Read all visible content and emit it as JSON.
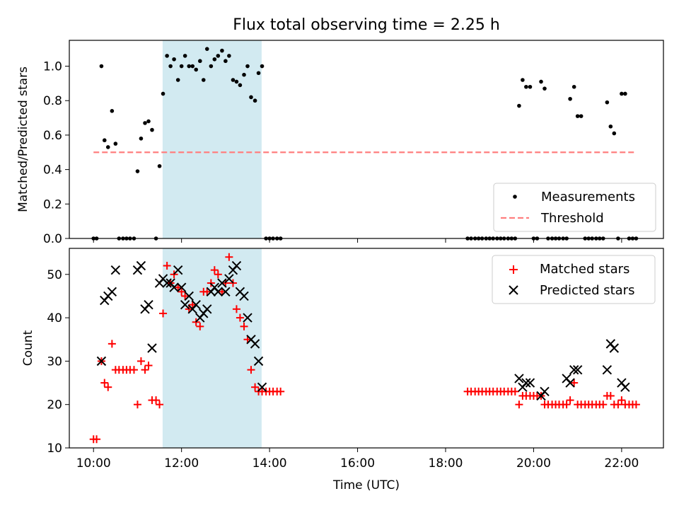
{
  "chart_data": [
    {
      "type": "scatter",
      "title": "Flux total observing time = 2.25 h",
      "xlabel": "",
      "ylabel": "Matched/Predicted stars",
      "xlim": [
        9.45,
        22.95
      ],
      "ylim": [
        0,
        1.15
      ],
      "yticks": [
        0.0,
        0.2,
        0.4,
        0.6,
        0.8,
        1.0
      ],
      "ytick_labels": [
        "0.0",
        "0.2",
        "0.4",
        "0.6",
        "0.8",
        "1.0"
      ],
      "shaded_span": {
        "x": [
          11.57,
          13.82
        ],
        "color": "#add8e6"
      },
      "legend_position": "lower-right",
      "series": [
        {
          "name": "Measurements",
          "marker": "dot",
          "color": "#000000",
          "x": [
            10.0,
            10.07,
            10.18,
            10.25,
            10.33,
            10.42,
            10.5,
            10.58,
            10.67,
            10.75,
            10.83,
            10.92,
            11.0,
            11.08,
            11.17,
            11.25,
            11.33,
            11.42,
            11.5,
            11.58,
            11.67,
            11.75,
            11.83,
            11.92,
            12.0,
            12.08,
            12.17,
            12.25,
            12.33,
            12.42,
            12.5,
            12.58,
            12.67,
            12.75,
            12.83,
            12.92,
            13.0,
            13.08,
            13.17,
            13.25,
            13.33,
            13.42,
            13.5,
            13.58,
            13.67,
            13.75,
            13.83,
            13.92,
            14.0,
            14.08,
            14.17,
            14.25,
            18.5,
            18.58,
            18.67,
            18.75,
            18.83,
            18.92,
            19.0,
            19.08,
            19.17,
            19.25,
            19.33,
            19.42,
            19.5,
            19.58,
            19.67,
            19.75,
            19.83,
            19.92,
            20.0,
            20.08,
            20.17,
            20.25,
            20.33,
            20.42,
            20.5,
            20.58,
            20.67,
            20.75,
            20.83,
            20.92,
            21.0,
            21.08,
            21.17,
            21.25,
            21.33,
            21.42,
            21.5,
            21.58,
            21.67,
            21.75,
            21.83,
            21.92,
            22.0,
            22.08,
            22.17,
            22.25,
            22.33
          ],
          "y": [
            0.0,
            0.0,
            1.0,
            0.57,
            0.53,
            0.74,
            0.55,
            0.0,
            0.0,
            0.0,
            0.0,
            0.0,
            0.39,
            0.58,
            0.67,
            0.68,
            0.63,
            0.0,
            0.42,
            0.84,
            1.06,
            1.0,
            1.04,
            0.92,
            1.0,
            1.06,
            1.0,
            1.0,
            0.98,
            1.03,
            0.92,
            1.1,
            1.0,
            1.04,
            1.06,
            1.09,
            1.03,
            1.06,
            0.92,
            0.91,
            0.89,
            0.95,
            1.0,
            0.82,
            0.8,
            0.96,
            1.0,
            0.0,
            0.0,
            0.0,
            0.0,
            0.0,
            0.0,
            0.0,
            0.0,
            0.0,
            0.0,
            0.0,
            0.0,
            0.0,
            0.0,
            0.0,
            0.0,
            0.0,
            0.0,
            0.0,
            0.77,
            0.92,
            0.88,
            0.88,
            0.0,
            0.0,
            0.91,
            0.87,
            0.0,
            0.0,
            0.0,
            0.0,
            0.0,
            0.0,
            0.81,
            0.88,
            0.71,
            0.71,
            0.0,
            0.0,
            0.0,
            0.0,
            0.0,
            0.0,
            0.79,
            0.65,
            0.61,
            0.0,
            0.84,
            0.84,
            0.0,
            0.0,
            0.0
          ]
        },
        {
          "name": "Threshold",
          "marker": "dashed-line",
          "color": "#ff7f7f",
          "x": [
            10.0,
            22.3
          ],
          "y": [
            0.5,
            0.5
          ]
        }
      ]
    },
    {
      "type": "scatter",
      "title": "",
      "xlabel": "Time (UTC)",
      "ylabel": "Count",
      "xlim": [
        9.45,
        22.95
      ],
      "ylim": [
        10,
        56
      ],
      "yticks": [
        10,
        20,
        30,
        40,
        50
      ],
      "ytick_labels": [
        "10",
        "20",
        "30",
        "40",
        "50"
      ],
      "xticks": [
        10,
        12,
        14,
        16,
        18,
        20,
        22
      ],
      "xtick_labels": [
        "10:00",
        "12:00",
        "14:00",
        "16:00",
        "18:00",
        "20:00",
        "22:00"
      ],
      "shaded_span": {
        "x": [
          11.57,
          13.82
        ],
        "color": "#add8e6"
      },
      "legend_position": "upper-right",
      "series": [
        {
          "name": "Matched stars",
          "marker": "plus",
          "color": "#ff0000",
          "x": [
            10.0,
            10.07,
            10.18,
            10.25,
            10.33,
            10.42,
            10.5,
            10.58,
            10.67,
            10.75,
            10.83,
            10.92,
            11.0,
            11.08,
            11.17,
            11.25,
            11.33,
            11.42,
            11.5,
            11.58,
            11.67,
            11.75,
            11.83,
            11.92,
            12.0,
            12.08,
            12.17,
            12.25,
            12.33,
            12.42,
            12.5,
            12.58,
            12.67,
            12.75,
            12.83,
            12.92,
            13.0,
            13.08,
            13.17,
            13.25,
            13.33,
            13.42,
            13.5,
            13.58,
            13.67,
            13.75,
            13.83,
            13.92,
            14.0,
            14.08,
            14.17,
            14.25,
            18.5,
            18.58,
            18.67,
            18.75,
            18.83,
            18.92,
            19.0,
            19.08,
            19.17,
            19.25,
            19.33,
            19.42,
            19.5,
            19.58,
            19.67,
            19.75,
            19.83,
            19.92,
            20.0,
            20.08,
            20.17,
            20.25,
            20.33,
            20.42,
            20.5,
            20.58,
            20.67,
            20.75,
            20.83,
            20.92,
            21.0,
            21.08,
            21.17,
            21.25,
            21.33,
            21.42,
            21.5,
            21.58,
            21.67,
            21.75,
            21.83,
            21.92,
            22.0,
            22.08,
            22.17,
            22.25,
            22.33
          ],
          "y": [
            12,
            12,
            30,
            25,
            24,
            34,
            28,
            28,
            28,
            28,
            28,
            28,
            20,
            30,
            28,
            29,
            21,
            21,
            20,
            41,
            52,
            48,
            50,
            47,
            46,
            45,
            42,
            43,
            39,
            38,
            46,
            46,
            48,
            51,
            50,
            46,
            48,
            54,
            48,
            42,
            40,
            38,
            35,
            28,
            24,
            23,
            23,
            23,
            23,
            23,
            23,
            23,
            23,
            23,
            23,
            23,
            23,
            23,
            23,
            23,
            23,
            23,
            23,
            23,
            23,
            23,
            20,
            22,
            22,
            22,
            22,
            22,
            22,
            20,
            20,
            20,
            20,
            20,
            20,
            20,
            21,
            25,
            20,
            20,
            20,
            20,
            20,
            20,
            20,
            20,
            22,
            22,
            20,
            20,
            21,
            20,
            20,
            20,
            20
          ]
        },
        {
          "name": "Predicted stars",
          "marker": "x",
          "color": "#000000",
          "x": [
            10.18,
            10.25,
            10.33,
            10.42,
            10.5,
            11.0,
            11.08,
            11.17,
            11.25,
            11.33,
            11.5,
            11.58,
            11.67,
            11.75,
            11.83,
            11.92,
            12.0,
            12.08,
            12.17,
            12.25,
            12.33,
            12.42,
            12.5,
            12.58,
            12.67,
            12.75,
            12.83,
            12.92,
            13.0,
            13.08,
            13.17,
            13.25,
            13.33,
            13.42,
            13.5,
            13.58,
            13.67,
            13.75,
            13.83,
            19.67,
            19.75,
            19.83,
            19.92,
            20.17,
            20.25,
            20.75,
            20.83,
            20.92,
            21.0,
            21.67,
            21.75,
            21.83,
            22.0,
            22.08
          ],
          "y": [
            30,
            44,
            45,
            46,
            51,
            51,
            52,
            42,
            43,
            33,
            48,
            49,
            48,
            48,
            47,
            51,
            47,
            43,
            45,
            42,
            43,
            40,
            41,
            42,
            46,
            47,
            46,
            48,
            46,
            49,
            51,
            52,
            46,
            45,
            40,
            35,
            34,
            30,
            24,
            26,
            24,
            25,
            25,
            22,
            23,
            26,
            25,
            28,
            28,
            28,
            34,
            33,
            25,
            24
          ]
        }
      ]
    }
  ]
}
